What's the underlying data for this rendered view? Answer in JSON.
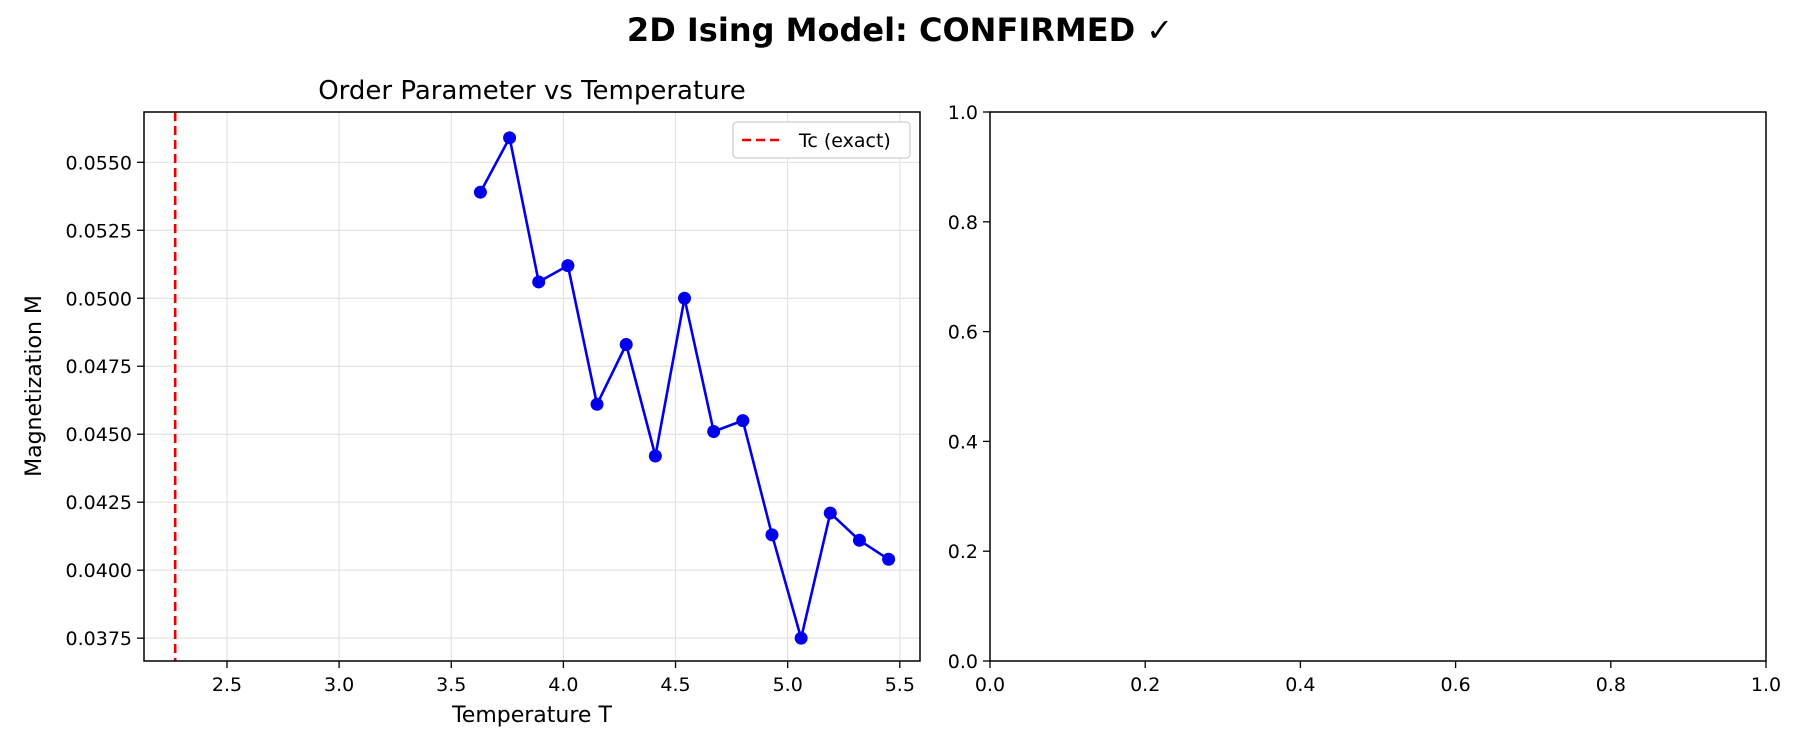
{
  "figure": {
    "suptitle": "2D Ising Model: CONFIRMED ✓"
  },
  "chart_data": [
    {
      "type": "line",
      "title": "Order Parameter vs Temperature",
      "xlabel": "Temperature T",
      "ylabel": "Magnetization M",
      "xlim": [
        2.13,
        5.59
      ],
      "ylim": [
        0.03666,
        0.05685
      ],
      "xticks": [
        2.5,
        3.0,
        3.5,
        4.0,
        4.5,
        5.0,
        5.5
      ],
      "xtick_labels": [
        "2.5",
        "3.0",
        "3.5",
        "4.0",
        "4.5",
        "5.0",
        "5.5"
      ],
      "yticks": [
        0.0375,
        0.04,
        0.0425,
        0.045,
        0.0475,
        0.05,
        0.0525,
        0.055
      ],
      "ytick_labels": [
        "0.0375",
        "0.0400",
        "0.0425",
        "0.0450",
        "0.0475",
        "0.0500",
        "0.0525",
        "0.0550"
      ],
      "grid": true,
      "legend_position": "top-right",
      "series": [
        {
          "color": "#0000ee",
          "marker": "circle",
          "x": [
            3.63,
            3.76,
            3.89,
            4.02,
            4.15,
            4.28,
            4.41,
            4.54,
            4.67,
            4.8,
            4.93,
            5.06,
            5.19,
            5.32,
            5.45
          ],
          "y": [
            0.0539,
            0.0559,
            0.0506,
            0.0512,
            0.0461,
            0.0483,
            0.0442,
            0.05,
            0.0451,
            0.0455,
            0.0413,
            0.0375,
            0.0421,
            0.0411,
            0.0404
          ]
        }
      ],
      "reference_lines": [
        {
          "orientation": "vertical",
          "x": 2.269,
          "name": "Tc (exact)",
          "color": "#ee0000",
          "style": "dashed"
        }
      ]
    },
    {
      "type": "line",
      "title": "",
      "xlabel": "",
      "ylabel": "",
      "xlim": [
        0,
        1
      ],
      "ylim": [
        0,
        1
      ],
      "xticks": [
        0,
        0.2,
        0.4,
        0.6,
        0.8,
        1.0
      ],
      "xtick_labels": [
        "0.0",
        "0.2",
        "0.4",
        "0.6",
        "0.8",
        "1.0"
      ],
      "yticks": [
        0,
        0.2,
        0.4,
        0.6,
        0.8,
        1.0
      ],
      "ytick_labels": [
        "0.0",
        "0.2",
        "0.4",
        "0.6",
        "0.8",
        "1.0"
      ],
      "grid": false,
      "series": []
    }
  ]
}
